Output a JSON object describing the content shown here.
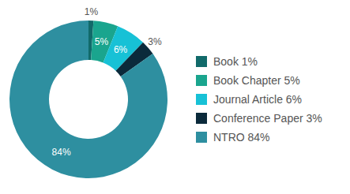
{
  "chart_data": {
    "type": "pie",
    "categories": [
      "Book 1%",
      "Book Chapter 5%",
      "Journal Article 6%",
      "Conference Paper 3%",
      "NTRO 84%"
    ],
    "values": [
      1,
      5,
      6,
      3,
      84
    ],
    "value_labels": [
      "1%",
      "5%",
      "6%",
      "3%",
      "84%"
    ],
    "colors": [
      "#116a6a",
      "#1aa58e",
      "#17c1d6",
      "#0b2a3b",
      "#2e8fa0"
    ],
    "data_labels": true,
    "legend": "right"
  }
}
